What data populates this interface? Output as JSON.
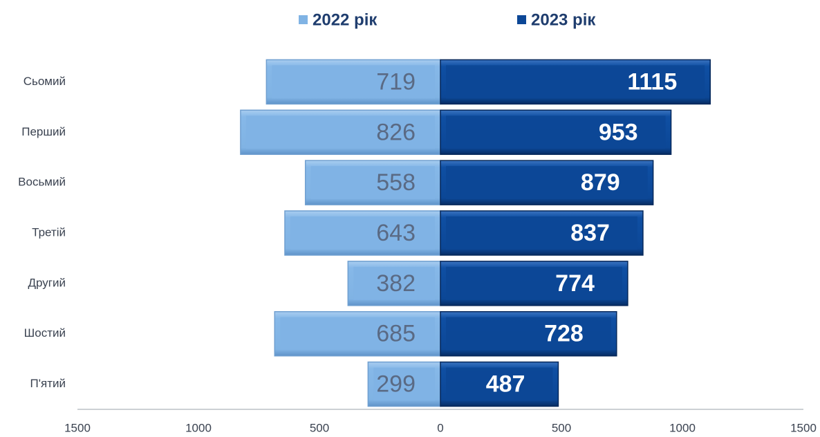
{
  "chart_data": {
    "type": "butterfly",
    "categories": [
      "Сьомий",
      "Перший",
      "Восьмий",
      "Третій",
      "Другий",
      "Шостий",
      "П'ятий"
    ],
    "series": [
      {
        "name": "2022 рік",
        "color": "#80b3e4",
        "values": [
          719,
          826,
          558,
          643,
          382,
          685,
          299
        ]
      },
      {
        "name": "2023 рік",
        "color": "#0c4796",
        "values": [
          1115,
          953,
          879,
          837,
          774,
          728,
          487
        ]
      }
    ],
    "xlim": [
      -1500,
      1500
    ],
    "xticks": [
      {
        "value": -1500,
        "label": "1500"
      },
      {
        "value": -1000,
        "label": "1000"
      },
      {
        "value": -500,
        "label": "500"
      },
      0,
      500,
      1000,
      1500
    ]
  }
}
